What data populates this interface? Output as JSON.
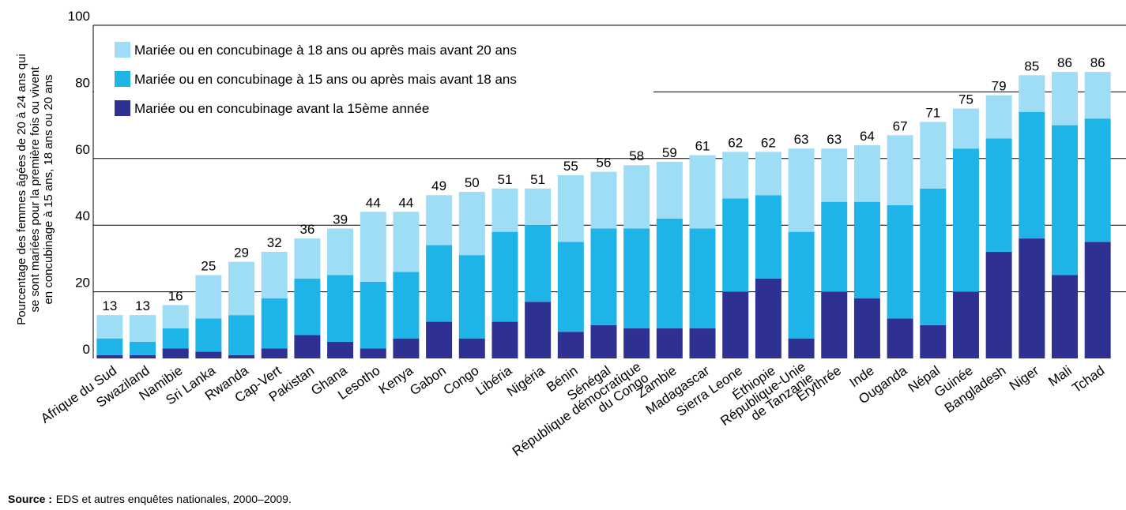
{
  "chart_data": {
    "type": "stacked_bar",
    "y_label": [
      "Pourcentage des femmes âgées de 20 à 24 ans qui",
      "se sont mariées pour la première fois ou vivent",
      "en concubinage à 15 ans, 18 ans ou 20 ans"
    ],
    "categories": [
      "Afrique du Sud",
      "Swaziland",
      "Namibie",
      "Sri Lanka",
      "Rwanda",
      "Cap-Vert",
      "Pakistan",
      "Ghana",
      "Lesotho",
      "Kenya",
      "Gabon",
      "Congo",
      "Libéria",
      "Nigéria",
      "Bénin",
      "Sénégal",
      "République démocratique\ndu Congo",
      "Zambie",
      "Madagascar",
      "Sierra Leone",
      "Éthiopie",
      "République-Unie\nde Tanzanie",
      "Érythrée",
      "Inde",
      "Ouganda",
      "Népal",
      "Guinée",
      "Bangladesh",
      "Niger",
      "Mali",
      "Tchad"
    ],
    "series": [
      {
        "name": "Mariée ou en concubinage avant la 15ème année",
        "color": "#2e3192",
        "values": [
          1,
          1,
          3,
          2,
          1,
          3,
          7,
          5,
          3,
          6,
          11,
          6,
          11,
          17,
          8,
          10,
          9,
          9,
          9,
          20,
          24,
          6,
          20,
          18,
          12,
          10,
          20,
          32,
          36,
          25,
          35
        ]
      },
      {
        "name": "Mariée ou en concubinage à 15 ans ou après mais avant 18 ans",
        "color": "#1eb4e8",
        "values": [
          5,
          4,
          6,
          10,
          12,
          15,
          17,
          20,
          20,
          20,
          23,
          25,
          27,
          23,
          27,
          29,
          30,
          33,
          30,
          28,
          25,
          32,
          27,
          29,
          34,
          41,
          43,
          34,
          38,
          45,
          37
        ]
      },
      {
        "name": "Mariée ou en concubinage à 18 ans ou après mais avant 20 ans",
        "color": "#9fdcf5",
        "values": [
          7,
          8,
          7,
          13,
          16,
          14,
          12,
          14,
          21,
          18,
          15,
          19,
          13,
          11,
          20,
          17,
          19,
          17,
          22,
          14,
          13,
          25,
          16,
          17,
          21,
          20,
          12,
          13,
          11,
          16,
          14
        ]
      }
    ],
    "totals": [
      13,
      13,
      16,
      25,
      29,
      32,
      36,
      39,
      44,
      44,
      49,
      50,
      51,
      51,
      55,
      56,
      58,
      59,
      61,
      62,
      62,
      63,
      63,
      64,
      67,
      71,
      75,
      79,
      85,
      86,
      86
    ],
    "ylim": [
      0,
      100
    ],
    "yticks": [
      0,
      20,
      40,
      60,
      80,
      100
    ],
    "grid": true,
    "legend": "upper left",
    "source_label": "Source :",
    "source": "EDS et autres enquêtes nationales, 2000–2009."
  }
}
